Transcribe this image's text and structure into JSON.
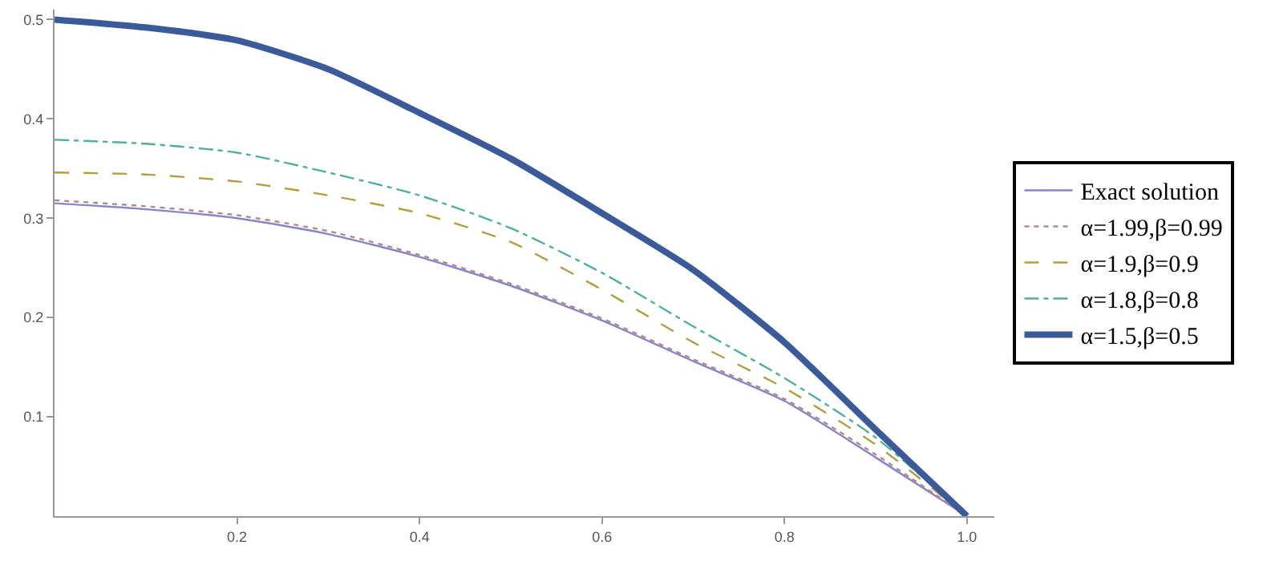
{
  "chart_data": {
    "type": "line",
    "x": [
      0,
      0.1,
      0.2,
      0.3,
      0.4,
      0.5,
      0.6,
      0.7,
      0.8,
      0.9,
      1.0
    ],
    "series": [
      {
        "name": "Exact solution",
        "color": "#8585c8",
        "line_style": "solid",
        "values": [
          0.315,
          0.309,
          0.3,
          0.284,
          0.261,
          0.232,
          0.197,
          0.156,
          0.116,
          0.059,
          0
        ]
      },
      {
        "name": "α=1.99,β=0.99",
        "color": "#b08a8a",
        "line_style": "dotted",
        "values": [
          0.318,
          0.312,
          0.303,
          0.287,
          0.263,
          0.234,
          0.199,
          0.158,
          0.118,
          0.062,
          0
        ]
      },
      {
        "name": "α=1.9,β=0.9",
        "color": "#b0a040",
        "line_style": "dashed",
        "values": [
          0.346,
          0.344,
          0.337,
          0.323,
          0.305,
          0.276,
          0.228,
          0.175,
          0.129,
          0.072,
          0
        ]
      },
      {
        "name": "α=1.8,β=0.8",
        "color": "#50b0a0",
        "line_style": "dashdot",
        "values": [
          0.379,
          0.375,
          0.366,
          0.346,
          0.323,
          0.29,
          0.245,
          0.191,
          0.139,
          0.079,
          0
        ]
      },
      {
        "name": "α=1.5,β=0.5",
        "color": "#3a5a9a",
        "line_style": "solid",
        "values": [
          0.5,
          0.492,
          0.479,
          0.45,
          0.406,
          0.36,
          0.305,
          0.248,
          0.175,
          0.087,
          0
        ]
      }
    ],
    "xlim": [
      0,
      1.03
    ],
    "xticks": [
      0.2,
      0.4,
      0.6,
      0.8,
      {
        "value": 1.0,
        "label": "1.0"
      }
    ],
    "ylim": [
      0,
      0.51
    ],
    "yticks": [
      0.1,
      0.2,
      0.3,
      0.4,
      0.5
    ],
    "legend": "right",
    "marker": "none",
    "grid": false
  }
}
